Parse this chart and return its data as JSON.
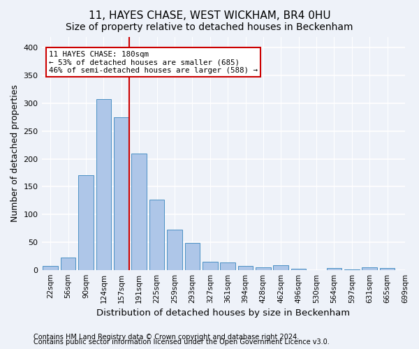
{
  "title": "11, HAYES CHASE, WEST WICKHAM, BR4 0HU",
  "subtitle": "Size of property relative to detached houses in Beckenham",
  "xlabel": "Distribution of detached houses by size in Beckenham",
  "ylabel": "Number of detached properties",
  "footnote1": "Contains HM Land Registry data © Crown copyright and database right 2024.",
  "footnote2": "Contains public sector information licensed under the Open Government Licence v3.0.",
  "tick_labels": [
    "22sqm",
    "56sqm",
    "90sqm",
    "124sqm",
    "157sqm",
    "191sqm",
    "225sqm",
    "259sqm",
    "293sqm",
    "327sqm",
    "361sqm",
    "394sqm",
    "428sqm",
    "462sqm",
    "496sqm",
    "530sqm",
    "564sqm",
    "597sqm",
    "631sqm",
    "665sqm",
    "699sqm"
  ],
  "bar_heights": [
    7,
    22,
    170,
    308,
    275,
    210,
    126,
    73,
    49,
    15,
    14,
    7,
    4,
    8,
    2,
    0,
    3,
    1,
    4,
    3
  ],
  "bar_color": "#aec6e8",
  "bar_edge_color": "#4a90c4",
  "property_bin_index": 4,
  "annotation_text": "11 HAYES CHASE: 180sqm\n← 53% of detached houses are smaller (685)\n46% of semi-detached houses are larger (588) →",
  "vline_color": "#cc0000",
  "annotation_box_color": "#ffffff",
  "annotation_box_edge": "#cc0000",
  "ylim": [
    0,
    420
  ],
  "yticks": [
    0,
    50,
    100,
    150,
    200,
    250,
    300,
    350,
    400
  ],
  "bg_color": "#eef2f9",
  "grid_color": "#ffffff",
  "title_fontsize": 11,
  "subtitle_fontsize": 10,
  "axis_label_fontsize": 9,
  "tick_fontsize": 7.5,
  "footnote_fontsize": 7
}
